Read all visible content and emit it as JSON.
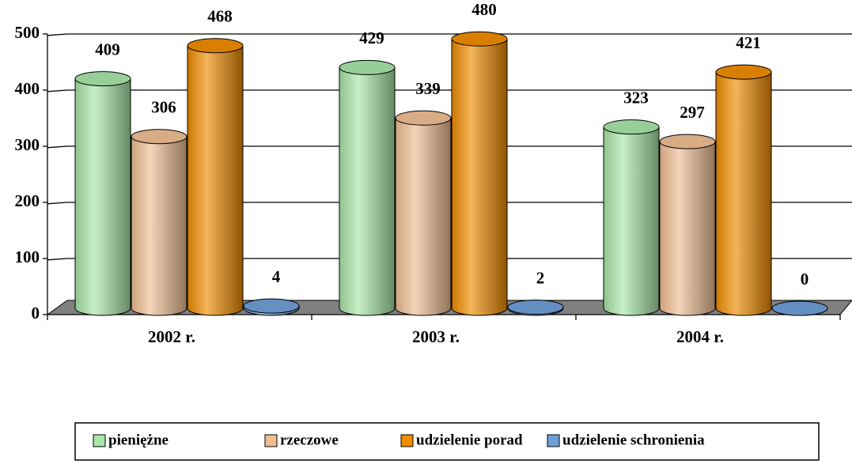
{
  "chart_data": {
    "type": "bar",
    "categories": [
      "2002 r.",
      "2003 r.",
      "2004 r."
    ],
    "series": [
      {
        "name": "pieniężne",
        "color": "#a9e6a9",
        "values": [
          409,
          429,
          323
        ]
      },
      {
        "name": "rzeczowe",
        "color": "#f0bf94",
        "values": [
          306,
          339,
          297
        ]
      },
      {
        "name": "udzielenie porad",
        "color": "#f08c00",
        "values": [
          468,
          480,
          421
        ]
      },
      {
        "name": "udzielenie schronienia",
        "color": "#6f9fd8",
        "values": [
          4,
          2,
          0
        ]
      }
    ],
    "ylim": [
      0,
      500
    ],
    "yticks": [
      0,
      100,
      200,
      300,
      400,
      500
    ],
    "grid": true,
    "legend": "bottom"
  }
}
